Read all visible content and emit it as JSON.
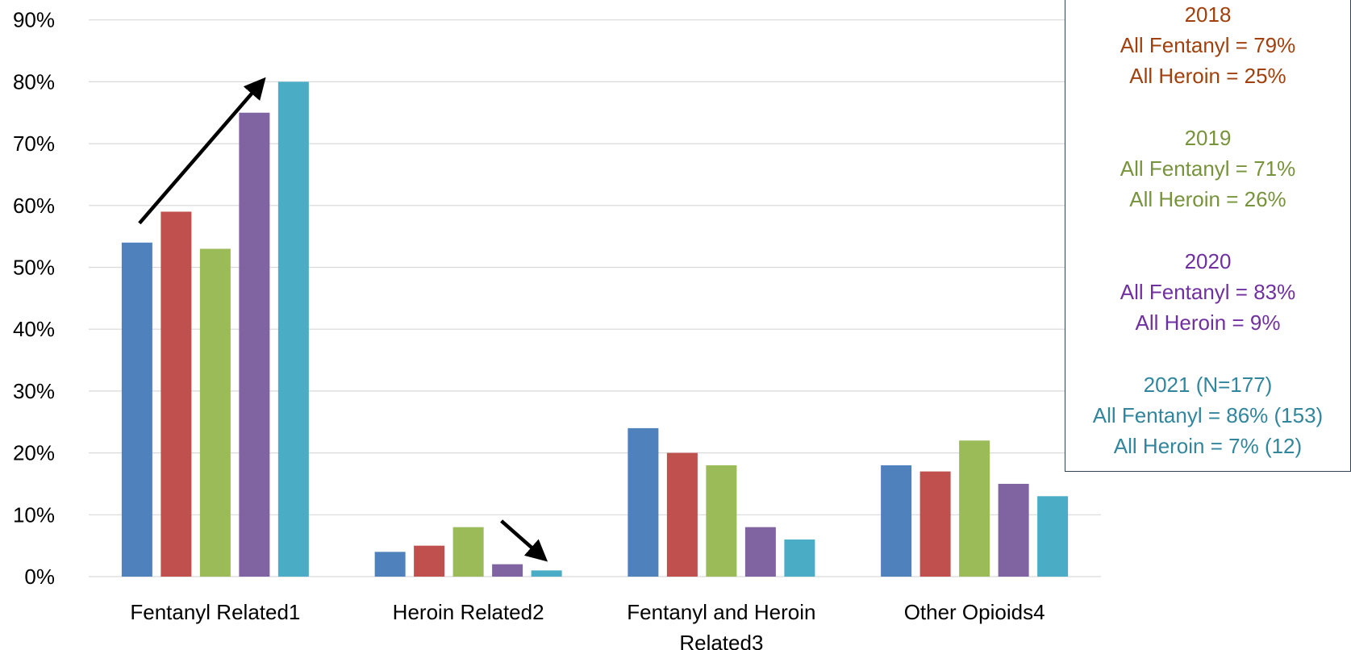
{
  "chart_data": {
    "type": "bar",
    "categories": [
      "Fentanyl Related1",
      "Heroin Related2",
      "Fentanyl and Heroin Related3",
      "Other Opioids4"
    ],
    "category_lines": [
      [
        "Fentanyl Related1"
      ],
      [
        "Heroin Related2"
      ],
      [
        "Fentanyl and Heroin",
        "Related3"
      ],
      [
        "Other Opioids4"
      ]
    ],
    "series": [
      {
        "color": "#4f81bd",
        "values": [
          54,
          4,
          24,
          18
        ]
      },
      {
        "color": "#c0504d",
        "values": [
          59,
          5,
          20,
          17
        ]
      },
      {
        "color": "#9bbb59",
        "values": [
          53,
          8,
          18,
          22
        ]
      },
      {
        "color": "#8064a2",
        "values": [
          75,
          2,
          8,
          15
        ]
      },
      {
        "color": "#4bacc6",
        "values": [
          80,
          1,
          6,
          13
        ]
      }
    ],
    "y_ticks": [
      "0%",
      "10%",
      "20%",
      "30%",
      "40%",
      "50%",
      "60%",
      "70%",
      "80%",
      "90%"
    ],
    "ylim": [
      0,
      90
    ],
    "grid": true,
    "legend": "none",
    "arrows": [
      {
        "category": 0,
        "from_series": 0,
        "to_series": 3,
        "direction": "up"
      },
      {
        "category": 1,
        "from_series": 2,
        "to_series": 4,
        "direction": "down"
      }
    ]
  },
  "stats_box": [
    {
      "color": "#a0410d",
      "lines": [
        "2018",
        "All Fentanyl = 79%",
        "All Heroin = 25%"
      ]
    },
    {
      "color": "#77933c",
      "lines": [
        "2019",
        "All Fentanyl = 71%",
        "All Heroin = 26%"
      ]
    },
    {
      "color": "#7030a0",
      "lines": [
        "2020",
        "All Fentanyl = 83%",
        "All Heroin = 9%"
      ]
    },
    {
      "color": "#31859c",
      "lines": [
        "2021 (N=177)",
        "All Fentanyl = 86% (153)",
        "All Heroin = 7% (12)"
      ]
    }
  ]
}
